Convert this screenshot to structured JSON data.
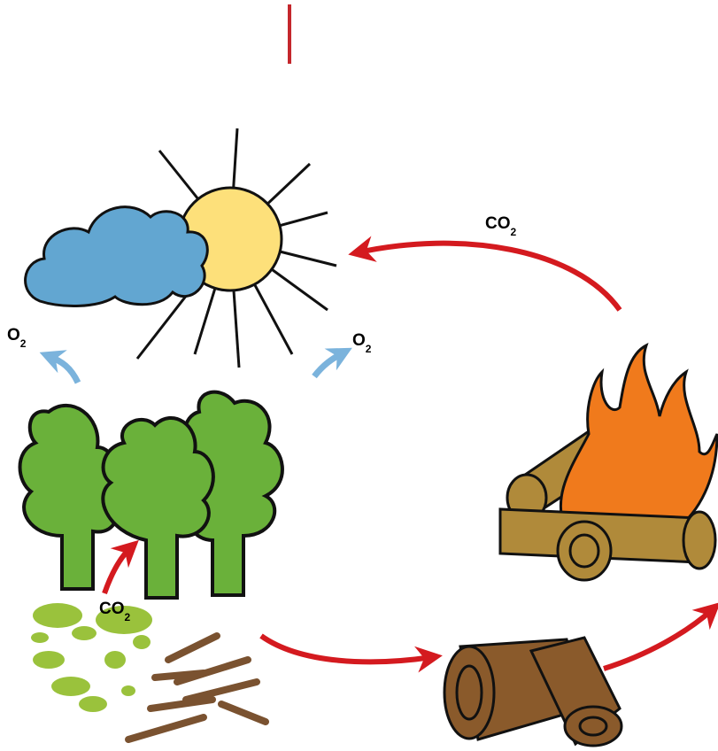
{
  "labels": [
    {
      "text": "CO",
      "sub": "2"
    },
    {
      "text": "O",
      "sub": "2"
    },
    {
      "text": "O",
      "sub": "2"
    },
    {
      "text": "CO",
      "sub": "2"
    }
  ]
}
